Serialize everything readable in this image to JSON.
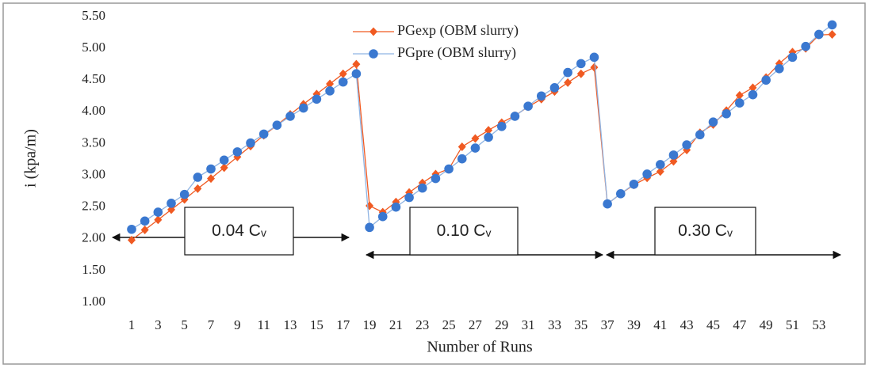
{
  "chart_data": {
    "type": "line",
    "y_label": "i (kpa/m)",
    "x_label": "Number of Runs",
    "categories": [
      1,
      null,
      3,
      null,
      5,
      null,
      7,
      null,
      9,
      null,
      11,
      null,
      13,
      null,
      15,
      null,
      17,
      null,
      19,
      null,
      21,
      null,
      23,
      null,
      25,
      null,
      27,
      null,
      29,
      null,
      31,
      null,
      33,
      null,
      35,
      null,
      37,
      null,
      39,
      null,
      41,
      null,
      43,
      null,
      45,
      null,
      47,
      null,
      49,
      null,
      51,
      null,
      53,
      null
    ],
    "series": [
      {
        "name": "PGexp (OBM slurry)",
        "color": "#f05a22",
        "marker": "diamond",
        "values": [
          1.98,
          2.14,
          2.3,
          2.46,
          2.62,
          2.79,
          2.95,
          3.12,
          3.29,
          3.46,
          3.63,
          3.79,
          3.96,
          4.12,
          4.28,
          4.44,
          4.6,
          4.75,
          2.52,
          2.42,
          2.58,
          2.73,
          2.88,
          3.02,
          3.1,
          3.45,
          3.58,
          3.71,
          3.83,
          3.94,
          4.08,
          4.2,
          4.32,
          4.46,
          4.6,
          4.7,
          2.55,
          2.71,
          2.85,
          2.96,
          3.06,
          3.22,
          3.4,
          3.67,
          3.8,
          4.02,
          4.26,
          4.38,
          4.54,
          4.76,
          4.94,
          5.0,
          5.21,
          5.22
        ]
      },
      {
        "name": "PGpre (OBM slurry)",
        "color": "#3a78d0",
        "line_color": "#8fb4e3",
        "marker": "circle",
        "values": [
          2.15,
          2.28,
          2.42,
          2.56,
          2.7,
          2.97,
          3.1,
          3.24,
          3.37,
          3.51,
          3.65,
          3.79,
          3.93,
          4.06,
          4.2,
          4.33,
          4.47,
          4.6,
          2.18,
          2.35,
          2.5,
          2.65,
          2.8,
          2.95,
          3.1,
          3.26,
          3.43,
          3.6,
          3.77,
          3.93,
          4.09,
          4.25,
          4.38,
          4.62,
          4.76,
          4.86,
          2.55,
          2.71,
          2.86,
          3.02,
          3.17,
          3.32,
          3.48,
          3.64,
          3.84,
          3.97,
          4.14,
          4.27,
          4.5,
          4.68,
          4.86,
          5.03,
          5.22,
          5.37
        ]
      }
    ],
    "ylim": [
      1,
      5.5
    ],
    "yticks": [
      {
        "value": 1,
        "label": "1.00"
      },
      {
        "value": 1.5,
        "label": "1.50"
      },
      {
        "value": 2,
        "label": "2.00"
      },
      {
        "value": 2.5,
        "label": "2.50"
      },
      {
        "value": 3,
        "label": "3.00"
      },
      {
        "value": 3.5,
        "label": "3.50"
      },
      {
        "value": 4,
        "label": "4.00"
      },
      {
        "value": 4.5,
        "label": "4.50"
      },
      {
        "value": 5,
        "label": "5.00"
      },
      {
        "value": 5.5,
        "label": "5.50"
      }
    ],
    "annotations": [
      {
        "text": "0.04 C",
        "sub": "v"
      },
      {
        "text": "0.10 C",
        "sub": "v"
      },
      {
        "text": "0.30 C",
        "sub": "v"
      }
    ]
  }
}
